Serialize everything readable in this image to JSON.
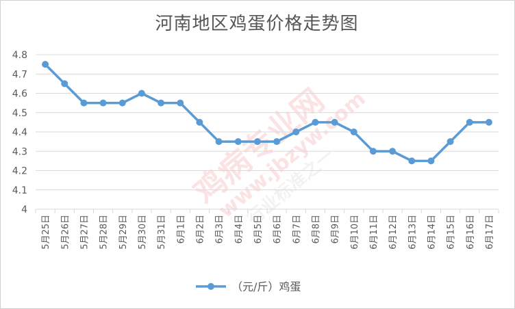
{
  "chart_data": {
    "type": "line",
    "title": "河南地区鸡蛋价格走势图",
    "categories": [
      "5月25日",
      "5月26日",
      "5月27日",
      "5月28日",
      "5月29日",
      "5月30日",
      "5月31日",
      "6月1日",
      "6月2日",
      "6月3日",
      "6月4日",
      "6月5日",
      "6月6日",
      "6月7日",
      "6月8日",
      "6月9日",
      "6月10日",
      "6月11日",
      "6月12日",
      "6月13日",
      "6月14日",
      "6月15日",
      "6月16日",
      "6月17日"
    ],
    "series": [
      {
        "name": "（元/斤）鸡蛋",
        "values": [
          4.75,
          4.65,
          4.55,
          4.55,
          4.55,
          4.6,
          4.55,
          4.55,
          4.45,
          4.35,
          4.35,
          4.35,
          4.35,
          4.4,
          4.45,
          4.45,
          4.4,
          4.3,
          4.3,
          4.25,
          4.25,
          4.35,
          4.45,
          4.45
        ]
      }
    ],
    "yticks": [
      "4",
      "4.1",
      "4.2",
      "4.3",
      "4.4",
      "4.5",
      "4.6",
      "4.7",
      "4.8"
    ],
    "ylim": [
      4,
      4.8
    ],
    "grid": true,
    "legend": "bottom",
    "line_color": "#5b9bd5"
  },
  "watermark": {
    "lines": [
      "鸡病专业网",
      "www.jbzyw.com",
      "行业标准之一"
    ]
  }
}
